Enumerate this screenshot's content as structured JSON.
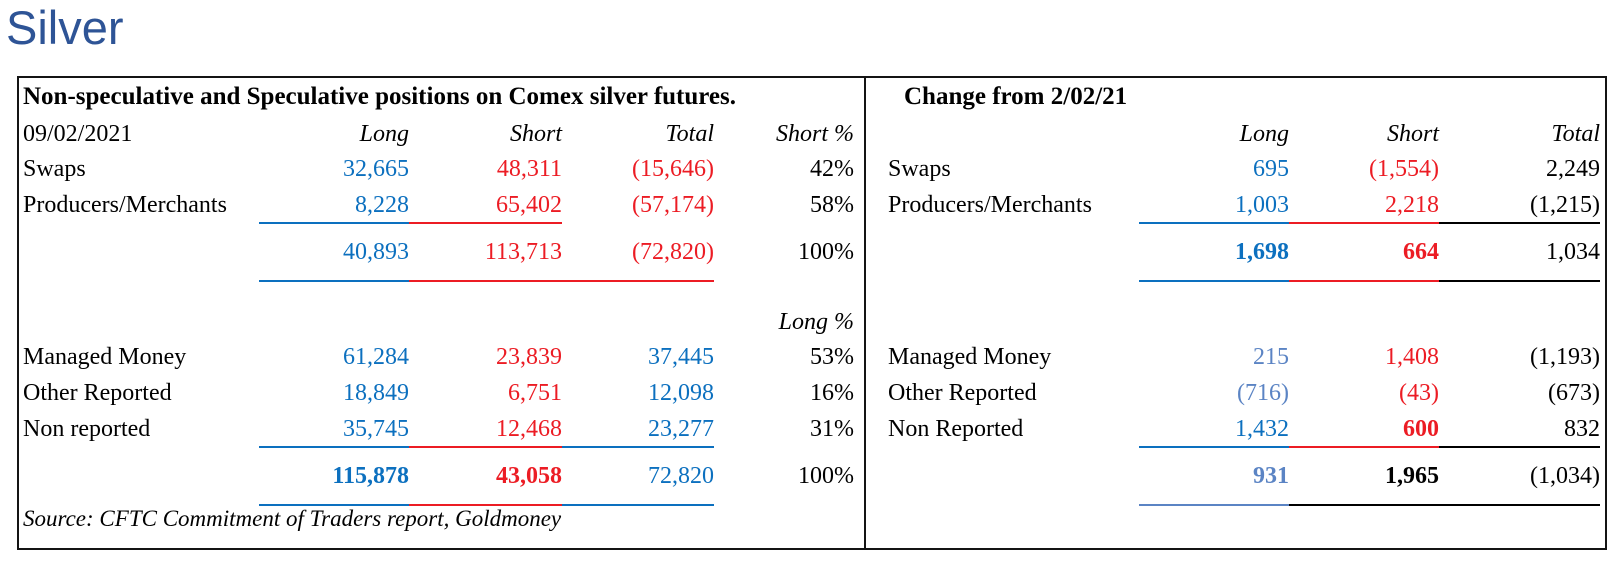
{
  "page_title": "Silver",
  "colors": {
    "title_blue": "#2E5496",
    "blue": "#0C70BF",
    "steel": "#5B84C4",
    "red": "#EC1C24",
    "black": "#000000"
  },
  "left_table": {
    "title": "Non-speculative and Speculative positions on Comex silver futures.",
    "source": "Source: CFTC Commitment of Traders report, Goldmoney",
    "rows": [
      {
        "kind": "hdr",
        "name": "left-column-header-row",
        "label": "09/02/2021",
        "cells": [
          {
            "t": "Long",
            "it": true
          },
          {
            "t": "Short",
            "it": true
          },
          {
            "t": "Total",
            "it": true
          },
          {
            "t": "Short %",
            "it": true
          }
        ]
      },
      {
        "kind": "data",
        "name": "left-row-swaps",
        "label": "Swaps",
        "cells": [
          {
            "t": "32,665",
            "c": "blue"
          },
          {
            "t": "48,311",
            "c": "red"
          },
          {
            "t": "(15,646)",
            "c": "red"
          },
          {
            "t": "42%",
            "c": "black"
          }
        ]
      },
      {
        "kind": "data",
        "name": "left-row-producers-merchants",
        "label": "Producers/Merchants",
        "cells": [
          {
            "t": "8,228",
            "c": "blue",
            "u": "blue"
          },
          {
            "t": "65,402",
            "c": "red",
            "u": "red"
          },
          {
            "t": "(57,174)",
            "c": "red"
          },
          {
            "t": "58%",
            "c": "black"
          }
        ]
      },
      {
        "kind": "total",
        "name": "left-row-nonspec-total",
        "label": "",
        "cells": [
          {
            "t": "40,893",
            "c": "blue",
            "u": "blue"
          },
          {
            "t": "113,713",
            "c": "red",
            "u": "red"
          },
          {
            "t": "(72,820)",
            "c": "red",
            "u": "red"
          },
          {
            "t": "100%",
            "c": "black"
          }
        ]
      },
      {
        "kind": "spacer",
        "name": "left-spacer-row"
      },
      {
        "kind": "hdr",
        "name": "left-long-pct-header-row",
        "label": "",
        "cells": [
          {
            "t": ""
          },
          {
            "t": ""
          },
          {
            "t": ""
          },
          {
            "t": "Long %",
            "it": true
          }
        ]
      },
      {
        "kind": "data",
        "name": "left-row-managed-money",
        "label": "Managed Money",
        "cells": [
          {
            "t": "61,284",
            "c": "blue"
          },
          {
            "t": "23,839",
            "c": "red"
          },
          {
            "t": "37,445",
            "c": "blue"
          },
          {
            "t": "53%",
            "c": "black"
          }
        ]
      },
      {
        "kind": "data",
        "name": "left-row-other-reported",
        "label": "Other Reported",
        "cells": [
          {
            "t": "18,849",
            "c": "blue"
          },
          {
            "t": "6,751",
            "c": "red"
          },
          {
            "t": "12,098",
            "c": "blue"
          },
          {
            "t": "16%",
            "c": "black"
          }
        ]
      },
      {
        "kind": "data",
        "name": "left-row-non-reported",
        "label": "Non reported",
        "cells": [
          {
            "t": "35,745",
            "c": "blue",
            "u": "blue"
          },
          {
            "t": "12,468",
            "c": "red",
            "u": "red"
          },
          {
            "t": "23,277",
            "c": "blue",
            "u": "blue"
          },
          {
            "t": "31%",
            "c": "black"
          }
        ]
      },
      {
        "kind": "total",
        "name": "left-row-spec-total",
        "label": "",
        "cells": [
          {
            "t": "115,878",
            "c": "blue",
            "b": true,
            "u": "blue"
          },
          {
            "t": "43,058",
            "c": "red",
            "b": true,
            "u": "red"
          },
          {
            "t": "72,820",
            "c": "blue",
            "u": "blue"
          },
          {
            "t": "100%",
            "c": "black"
          }
        ]
      }
    ]
  },
  "right_table": {
    "title": "Change from 2/02/21",
    "rows": [
      {
        "kind": "hdr",
        "name": "right-column-header-row",
        "label": "",
        "cells": [
          {
            "t": "Long",
            "it": true
          },
          {
            "t": "Short",
            "it": true
          },
          {
            "t": "Total",
            "it": true
          }
        ]
      },
      {
        "kind": "data",
        "name": "right-row-swaps",
        "label": "Swaps",
        "cells": [
          {
            "t": "695",
            "c": "blue"
          },
          {
            "t": "(1,554)",
            "c": "red"
          },
          {
            "t": "2,249",
            "c": "black"
          }
        ]
      },
      {
        "kind": "data",
        "name": "right-row-producers-merchants",
        "label": "Producers/Merchants",
        "cells": [
          {
            "t": "1,003",
            "c": "blue",
            "u": "blue"
          },
          {
            "t": "2,218",
            "c": "red",
            "u": "red"
          },
          {
            "t": "(1,215)",
            "c": "black",
            "u": "black"
          }
        ]
      },
      {
        "kind": "total",
        "name": "right-row-nonspec-total",
        "label": "",
        "cells": [
          {
            "t": "1,698",
            "c": "blue",
            "b": true,
            "u": "blue"
          },
          {
            "t": "664",
            "c": "red",
            "b": true,
            "u": "red"
          },
          {
            "t": "1,034",
            "c": "black",
            "u": "black"
          }
        ]
      },
      {
        "kind": "spacer2",
        "name": "right-spacer-row"
      },
      {
        "kind": "data",
        "name": "right-row-managed-money",
        "label": "Managed Money",
        "cells": [
          {
            "t": "215",
            "c": "steel"
          },
          {
            "t": "1,408",
            "c": "red"
          },
          {
            "t": "(1,193)",
            "c": "black"
          }
        ]
      },
      {
        "kind": "data",
        "name": "right-row-other-reported",
        "label": "Other Reported",
        "cells": [
          {
            "t": "(716)",
            "c": "steel"
          },
          {
            "t": "(43)",
            "c": "red"
          },
          {
            "t": "(673)",
            "c": "black"
          }
        ]
      },
      {
        "kind": "data",
        "name": "right-row-non-reported",
        "label": "Non Reported",
        "cells": [
          {
            "t": "1,432",
            "c": "blue",
            "u": "blue"
          },
          {
            "t": "600",
            "c": "red",
            "b": true,
            "u": "red"
          },
          {
            "t": "832",
            "c": "black",
            "u": "black"
          }
        ]
      },
      {
        "kind": "total",
        "name": "right-row-spec-total",
        "label": "",
        "cells": [
          {
            "t": "931",
            "c": "steel",
            "b": true,
            "u": "steel"
          },
          {
            "t": "1,965",
            "c": "black",
            "b": true,
            "u": "black"
          },
          {
            "t": "(1,034)",
            "c": "black",
            "u": "black"
          }
        ]
      }
    ]
  }
}
